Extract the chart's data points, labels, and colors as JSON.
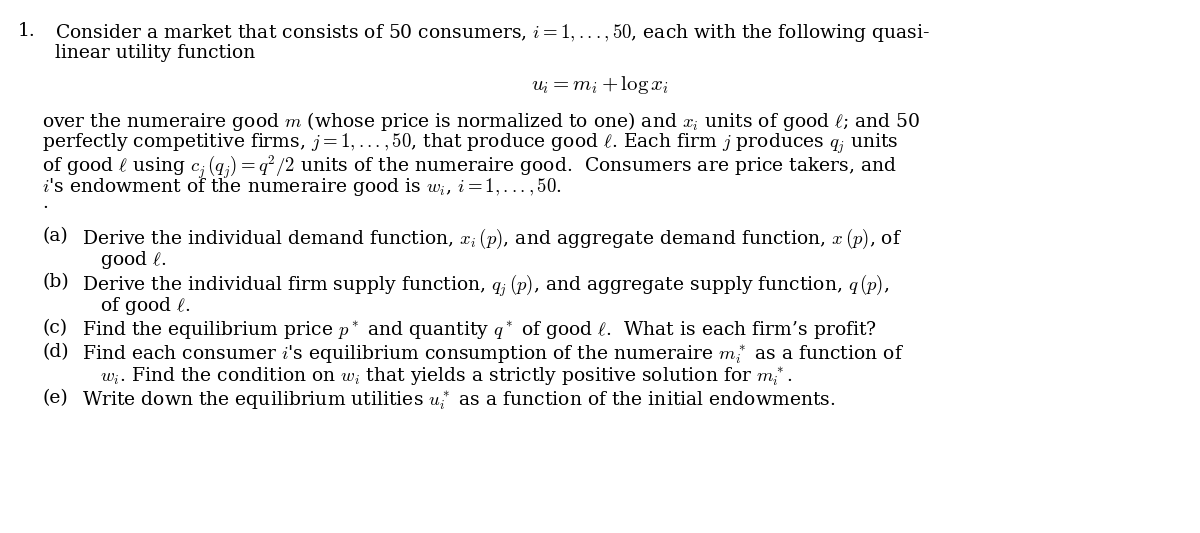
{
  "bg_color": "#ffffff",
  "text_color": "#000000",
  "figsize": [
    12.0,
    5.33
  ],
  "dpi": 100,
  "font_size_main": 13.5,
  "font_size_equation": 15,
  "title_number": "1.",
  "intro_line1": "Consider a market that consists of 50 consumers, $i = 1, ..., 50$, each with the following quasi-",
  "intro_line2": "linear utility function",
  "equation_utility": "$u_i = m_i + \\log x_i$",
  "body_line1": "over the numeraire good $m$ (whose price is normalized to one) and $x_i$ units of good $\\ell$; and 50",
  "body_line2": "perfectly competitive firms, $j = 1, ..., 50$, that produce good $\\ell$. Each firm $j$ produces $q_j$ units",
  "body_line3": "of good $\\ell$ using $c_j\\,(q_j) = q^2/2$ units of the numeraire good.  Consumers are price takers, and",
  "body_line4": "$i$'s endowment of the numeraire good is $w_i$, $i = 1, ..., 50$.",
  "dot": ".",
  "part_a_label": "(a)",
  "part_a_line1": "Derive the individual demand function, $x_i\\,(p)$, and aggregate demand function, $x\\,(p)$, of",
  "part_a_line2": "good $\\ell$.",
  "part_b_label": "(b)",
  "part_b_line1": "Derive the individual firm supply function, $q_j\\,(p)$, and aggregate supply function, $q\\,(p)$,",
  "part_b_line2": "of good $\\ell$.",
  "part_c_label": "(c)",
  "part_c_line1": "Find the equilibrium price $p^*$ and quantity $q^*$ of good $\\ell$.  What is each firm’s profit?",
  "part_d_label": "(d)",
  "part_d_line1": "Find each consumer $i$'s equilibrium consumption of the numeraire $m_i^*$ as a function of",
  "part_d_line2": "$w_i$. Find the condition on $w_i$ that yields a strictly positive solution for $m_i^*$.",
  "part_e_label": "(e)",
  "part_e_line1": "Write down the equilibrium utilities $u_i^*$ as a function of the initial endowments."
}
